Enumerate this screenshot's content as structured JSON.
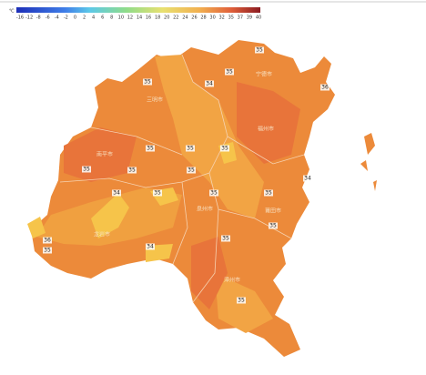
{
  "legend": {
    "unit": "℃",
    "ticks": [
      "-16",
      "-12",
      "-8",
      "-6",
      "-4",
      "-2",
      "0",
      "2",
      "4",
      "6",
      "8",
      "10",
      "12",
      "14",
      "16",
      "18",
      "20",
      "22",
      "24",
      "26",
      "28",
      "30",
      "32",
      "35",
      "37",
      "39",
      "40"
    ]
  },
  "stations": [
    "35",
    "35",
    "34",
    "35",
    "36",
    "35",
    "35",
    "35",
    "35",
    "35",
    "35",
    "34",
    "35",
    "35",
    "34",
    "35",
    "35",
    "36",
    "35",
    "34",
    "35",
    "35"
  ],
  "regions": [
    "南平市",
    "宁德市",
    "福州市",
    "三明市",
    "莆田市",
    "泉州市",
    "龙岩市",
    "漳州市"
  ]
}
